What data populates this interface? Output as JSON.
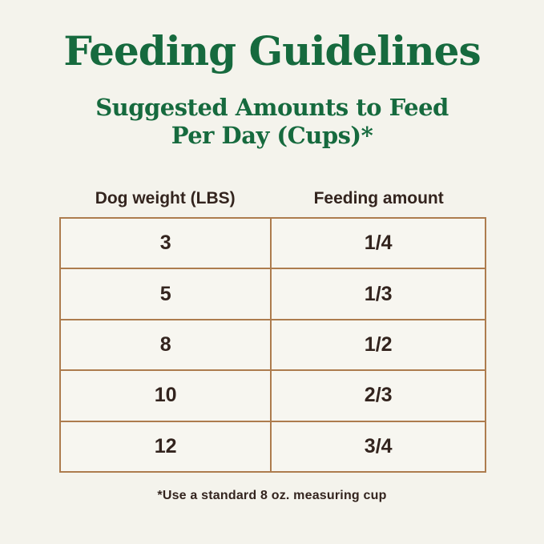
{
  "page": {
    "title": "Feeding Guidelines",
    "subtitle_line1": "Suggested Amounts to Feed",
    "subtitle_line2": "Per Day (Cups)*",
    "footnote": "*Use a standard 8 oz. measuring cup"
  },
  "table": {
    "headers": {
      "weight": "Dog weight (LBS)",
      "amount": "Feeding amount"
    },
    "rows": [
      {
        "weight": "3",
        "amount": "1/4"
      },
      {
        "weight": "5",
        "amount": "1/3"
      },
      {
        "weight": "8",
        "amount": "1/2"
      },
      {
        "weight": "10",
        "amount": "2/3"
      },
      {
        "weight": "12",
        "amount": "3/4"
      }
    ]
  },
  "colors": {
    "heading_green": "#166a3e",
    "body_text": "#33241e",
    "table_border": "#ad7c4e",
    "background": "#f4f3ec",
    "cell_background": "#f7f6f0"
  },
  "chart_data": {
    "type": "table",
    "title": "Feeding Guidelines",
    "subtitle": "Suggested Amounts to Feed Per Day (Cups)*",
    "columns": [
      "Dog weight (LBS)",
      "Feeding amount"
    ],
    "rows": [
      [
        "3",
        "1/4"
      ],
      [
        "5",
        "1/3"
      ],
      [
        "8",
        "1/2"
      ],
      [
        "10",
        "2/3"
      ],
      [
        "12",
        "3/4"
      ]
    ],
    "footnote": "*Use a standard 8 oz. measuring cup"
  }
}
